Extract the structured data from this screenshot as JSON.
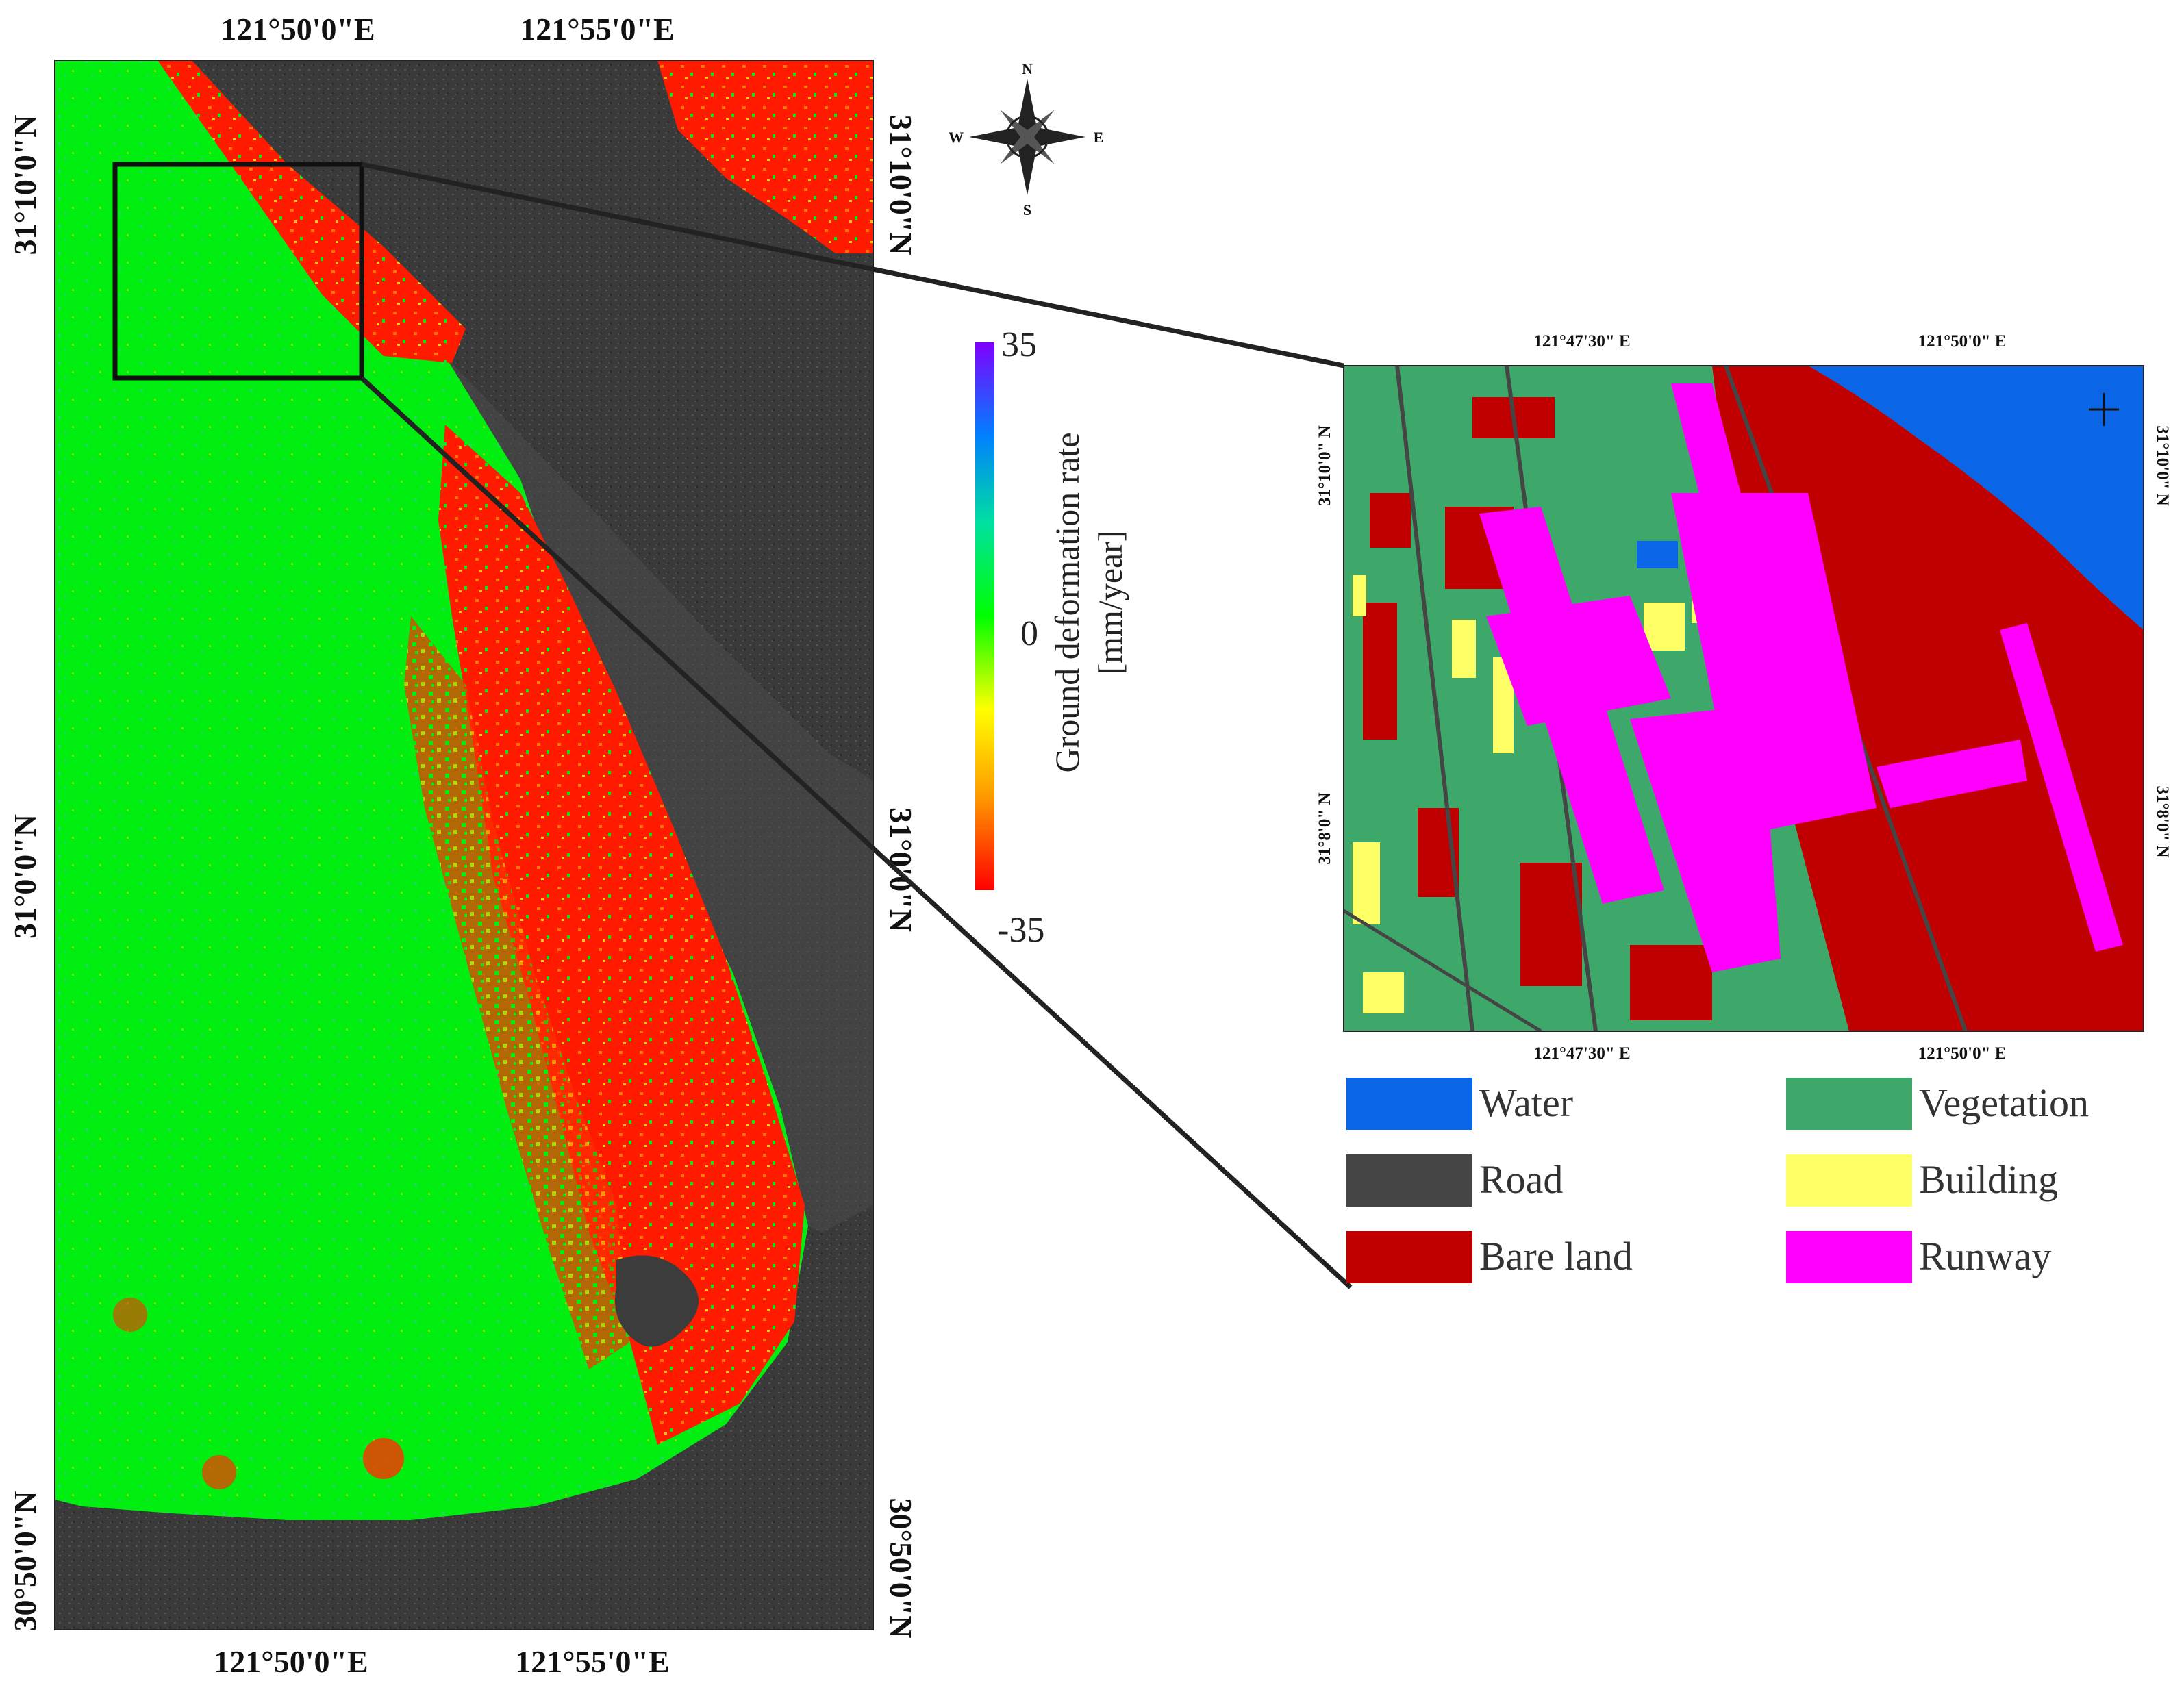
{
  "figure": {
    "main_map": {
      "top_longitudes": [
        "121°50'0\"E",
        "121°55'0\"E"
      ],
      "bottom_longitudes": [
        "121°50'0\"E",
        "121°55'0\"E"
      ],
      "left_latitudes": [
        "31°10'0\"N",
        "31°0'0\"N",
        "30°50'0\"N"
      ],
      "right_latitudes": [
        "31°10'0\"N",
        "31°0'0\"N",
        "30°50'0\"N"
      ]
    },
    "compass": {
      "n": "N",
      "s": "S",
      "e": "E",
      "w": "W"
    },
    "colorbar": {
      "title_line1": "Ground  deformation  rate",
      "title_line2": "[mm/year]",
      "max_label": "35",
      "mid_label": "0",
      "min_label": "-35",
      "max": 35,
      "mid": 0,
      "min": -35,
      "stops": [
        "#ff0000",
        "#ff9900",
        "#ffff00",
        "#00ff00",
        "#00e0a0",
        "#0080ff",
        "#7f00ff"
      ]
    },
    "inset": {
      "top_longitudes": [
        "121°47'30\" E",
        "121°50'0\" E"
      ],
      "bottom_longitudes": [
        "121°47'30\" E",
        "121°50'0\" E"
      ],
      "left_latitudes": [
        "31°10'0\" N",
        "31°8'0\" N"
      ],
      "right_latitudes": [
        "31°10'0\" N",
        "31°8'0\" N"
      ]
    },
    "legend": {
      "items": [
        {
          "label": "Water",
          "color": "#0a66e6"
        },
        {
          "label": "Vegetation",
          "color": "#3ea86a"
        },
        {
          "label": "Road",
          "color": "#454545"
        },
        {
          "label": "Building",
          "color": "#ffff66"
        },
        {
          "label": "Bare land",
          "color": "#c00000"
        },
        {
          "label": "Runway",
          "color": "#ff00ff"
        }
      ]
    },
    "colors": {
      "sea": "#3a3a3a",
      "stable_land": "#00ee10",
      "subsiding": "#ff1a00",
      "inset_vegetation": "#3ea86a",
      "inset_bare": "#c00000",
      "inset_water": "#0a66e6",
      "inset_runway": "#ff00ff",
      "inset_building": "#ffff66",
      "inset_road": "#454545"
    }
  }
}
